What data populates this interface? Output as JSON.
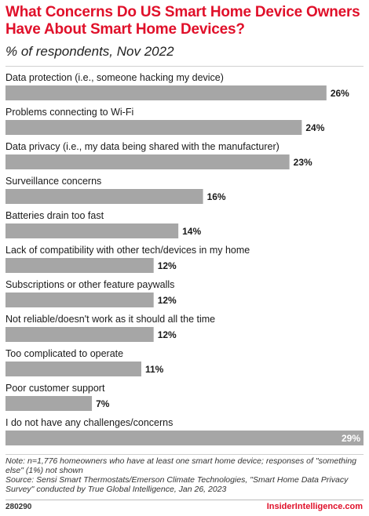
{
  "title": "What Concerns Do US Smart Home Device Owners Have About Smart Home Devices?",
  "subtitle": "% of respondents, Nov 2022",
  "chart_data": {
    "type": "bar",
    "orientation": "horizontal",
    "categories": [
      "Data protection (i.e., someone hacking my device)",
      "Problems connecting to Wi-Fi",
      "Data privacy (i.e., my data being shared with the manufacturer)",
      "Surveillance concerns",
      "Batteries drain too fast",
      "Lack of compatibility with other tech/devices in my home",
      "Subscriptions or other feature paywalls",
      "Not reliable/doesn't work as it should all the time",
      "Too complicated to operate",
      "Poor customer support",
      "I do not have any challenges/concerns"
    ],
    "values": [
      26,
      24,
      23,
      16,
      14,
      12,
      12,
      12,
      11,
      7,
      29
    ],
    "value_labels": [
      "26%",
      "24%",
      "23%",
      "16%",
      "14%",
      "12%",
      "12%",
      "12%",
      "11%",
      "7%",
      "29%"
    ],
    "bar_color": "#a6a6a6",
    "xlim": [
      0,
      29
    ]
  },
  "notes": {
    "note": "Note: n=1,776 homeowners who have at least one smart home device; responses of \"something else\" (1%) not shown",
    "source": "Source: Sensi Smart Thermostats/Emerson Climate Technologies, \"Smart Home Data Privacy Survey\" conducted by True Global Intelligence, Jan 26, 2023"
  },
  "footer": {
    "chart_id": "280290",
    "brand": "InsiderIntelligence.com"
  },
  "colors": {
    "accent": "#e0102a",
    "bar": "#a6a6a6"
  }
}
